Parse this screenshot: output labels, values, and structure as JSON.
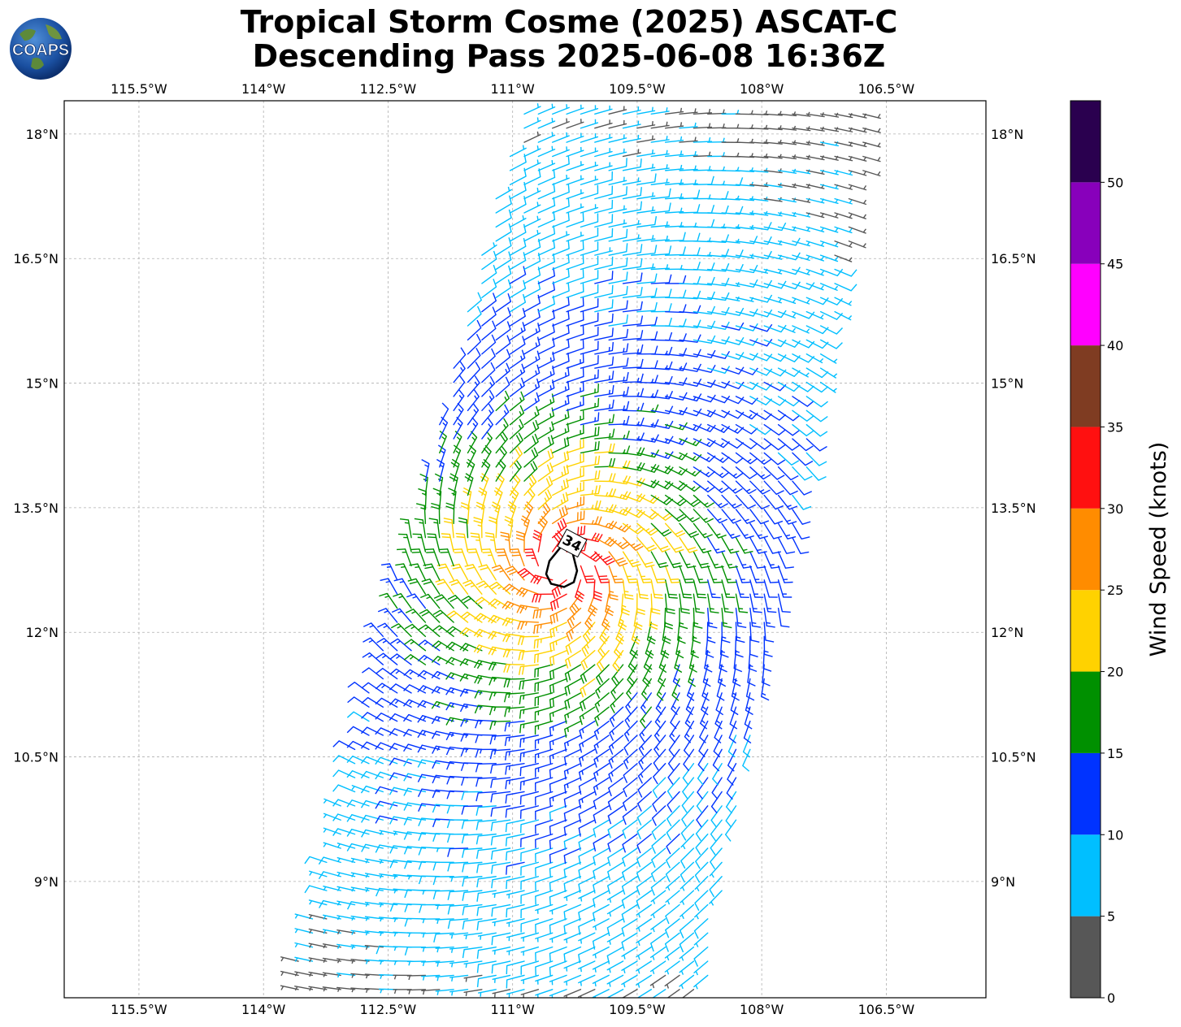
{
  "header": {
    "title_line1": "Tropical Storm Cosme (2025) ASCAT-C",
    "title_line2": "Descending Pass 2025-06-08 16:36Z"
  },
  "logo": {
    "text": "COAPS",
    "icon": "globe-logo-icon"
  },
  "map": {
    "lon_ticks": [
      "115.5°W",
      "114°W",
      "112.5°W",
      "111°W",
      "109.5°W",
      "108°W",
      "106.5°W"
    ],
    "lat_ticks": [
      "18°N",
      "16.5°N",
      "15°N",
      "13.5°N",
      "12°N",
      "10.5°N",
      "9°N"
    ],
    "lon_range": [
      -116.4,
      -105.3
    ],
    "lat_range": [
      7.6,
      18.4
    ],
    "grid": true,
    "storm_center": {
      "lon": -110.4,
      "lat": 12.8
    },
    "wind_radius_label": "34"
  },
  "colorbar": {
    "label": "Wind Speed (knots)",
    "tick_labels": [
      "0",
      "5",
      "10",
      "15",
      "20",
      "25",
      "30",
      "35",
      "40",
      "45",
      "50"
    ],
    "bins": [
      {
        "min": 0,
        "max": 5,
        "color": "#575757"
      },
      {
        "min": 5,
        "max": 10,
        "color": "#00bfff"
      },
      {
        "min": 10,
        "max": 15,
        "color": "#0033ff"
      },
      {
        "min": 15,
        "max": 20,
        "color": "#009000"
      },
      {
        "min": 20,
        "max": 25,
        "color": "#ffd200"
      },
      {
        "min": 25,
        "max": 30,
        "color": "#ff8c00"
      },
      {
        "min": 30,
        "max": 35,
        "color": "#ff1010"
      },
      {
        "min": 35,
        "max": 40,
        "color": "#7f3c22"
      },
      {
        "min": 40,
        "max": 45,
        "color": "#ff00ff"
      },
      {
        "min": 45,
        "max": 50,
        "color": "#8800bb"
      },
      {
        "min": 50,
        "max": 55,
        "color": "#2a004f"
      }
    ]
  },
  "wind_field": {
    "center": {
      "lon": -110.4,
      "lat": 12.8
    },
    "rings": [
      {
        "radius_deg": 0.3,
        "speed_kt": 32
      },
      {
        "radius_deg": 0.55,
        "speed_kt": 28
      },
      {
        "radius_deg": 0.8,
        "speed_kt": 24
      },
      {
        "radius_deg": 1.1,
        "speed_kt": 21
      },
      {
        "radius_deg": 1.4,
        "speed_kt": 19
      },
      {
        "radius_deg": 1.75,
        "speed_kt": 16
      },
      {
        "radius_deg": 2.1,
        "speed_kt": 14
      },
      {
        "radius_deg": 2.6,
        "speed_kt": 12
      },
      {
        "radius_deg": 3.2,
        "speed_kt": 10
      },
      {
        "radius_deg": 3.9,
        "speed_kt": 8
      },
      {
        "radius_deg": 4.8,
        "speed_kt": 7
      },
      {
        "radius_deg": 5.6,
        "speed_kt": 4
      }
    ],
    "swath": [
      [
        -110.9,
        18.4
      ],
      [
        -106.6,
        18.4
      ],
      [
        -108.7,
        7.6
      ],
      [
        -113.7,
        7.6
      ]
    ]
  }
}
